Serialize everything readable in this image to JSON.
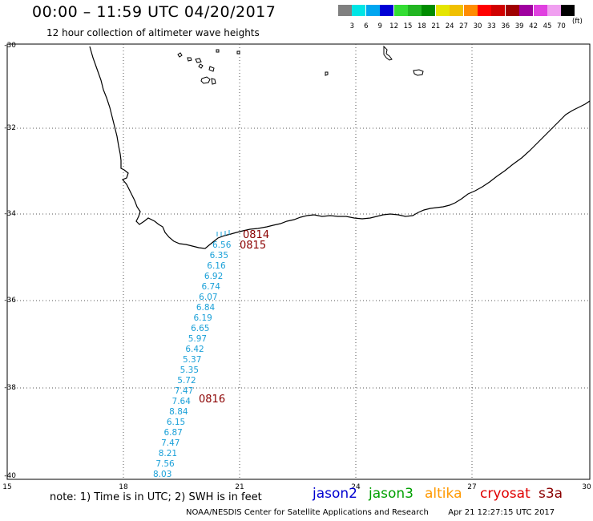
{
  "header": {
    "title": "00:00 – 11:59 UTC 04/20/2017",
    "subtitle": "12 hour collection of altimeter wave heights"
  },
  "legend": {
    "unit": "(ft)",
    "labels": [
      "3",
      "6",
      "9",
      "12",
      "15",
      "18",
      "21",
      "24",
      "27",
      "30",
      "33",
      "36",
      "39",
      "42",
      "45",
      "70"
    ],
    "colors": [
      "#808080",
      "#00e5e5",
      "#00a6f0",
      "#0000d6",
      "#33dd33",
      "#22b522",
      "#008c00",
      "#e5e500",
      "#f0c000",
      "#ff8c00",
      "#ff0000",
      "#d00000",
      "#a00000",
      "#a000a0",
      "#e040e0",
      "#f0a0f0",
      "#000000"
    ]
  },
  "map": {
    "lat_ticks": [
      "-30",
      "-32",
      "-34",
      "-36",
      "-38",
      "-40"
    ],
    "lon_ticks": [
      "15",
      "18",
      "21",
      "24",
      "27",
      "30"
    ],
    "swh_values": [
      "6.56",
      "6.35",
      "6.16",
      "6.92",
      "6.74",
      "6.07",
      "6.84",
      "6.19",
      "6.65",
      "5.97",
      "6.42",
      "5.37",
      "5.35",
      "5.72",
      "7.47",
      "7.64",
      "8.84",
      "6.15",
      "6.87",
      "7.47",
      "8.21",
      "7.56",
      "8.03"
    ],
    "swh_color": "#1aa0d8",
    "time_labels": [
      "0814",
      "0815",
      "0816"
    ],
    "time_color": "#8b0000"
  },
  "footer": {
    "note": "note: 1) Time is in UTC; 2) SWH is in feet",
    "satellites": [
      {
        "name": "jason2",
        "color": "#0000d0"
      },
      {
        "name": "jason3",
        "color": "#00a000"
      },
      {
        "name": "altika",
        "color": "#ff9900"
      },
      {
        "name": "cryosat",
        "color": "#e00000"
      },
      {
        "name": "s3a",
        "color": "#8b0000"
      }
    ],
    "credit": "NOAA/NESDIS Center for Satellite Applications and Research",
    "timestamp": "Apr 21 12:27:15 UTC 2017"
  }
}
